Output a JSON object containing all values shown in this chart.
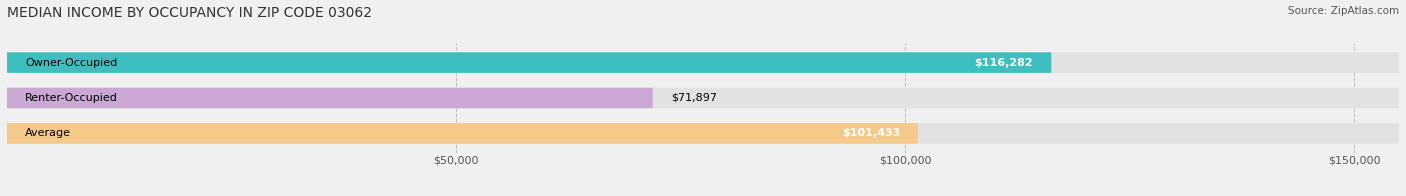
{
  "title": "MEDIAN INCOME BY OCCUPANCY IN ZIP CODE 03062",
  "source": "Source: ZipAtlas.com",
  "categories": [
    "Owner-Occupied",
    "Renter-Occupied",
    "Average"
  ],
  "values": [
    116282,
    71897,
    101433
  ],
  "bar_colors": [
    "#3dbfbf",
    "#c9a8d4",
    "#f5c98a"
  ],
  "value_labels": [
    "$116,282",
    "$71,897",
    "$101,433"
  ],
  "xlim": [
    0,
    155000
  ],
  "xticks": [
    0,
    50000,
    100000,
    150000
  ],
  "xticklabels": [
    "",
    "$50,000",
    "$100,000",
    "$150,000"
  ],
  "background_color": "#f0f0f0",
  "bar_bg_color": "#e2e2e2",
  "title_fontsize": 10,
  "label_fontsize": 8,
  "value_fontsize": 8,
  "source_fontsize": 7.5
}
